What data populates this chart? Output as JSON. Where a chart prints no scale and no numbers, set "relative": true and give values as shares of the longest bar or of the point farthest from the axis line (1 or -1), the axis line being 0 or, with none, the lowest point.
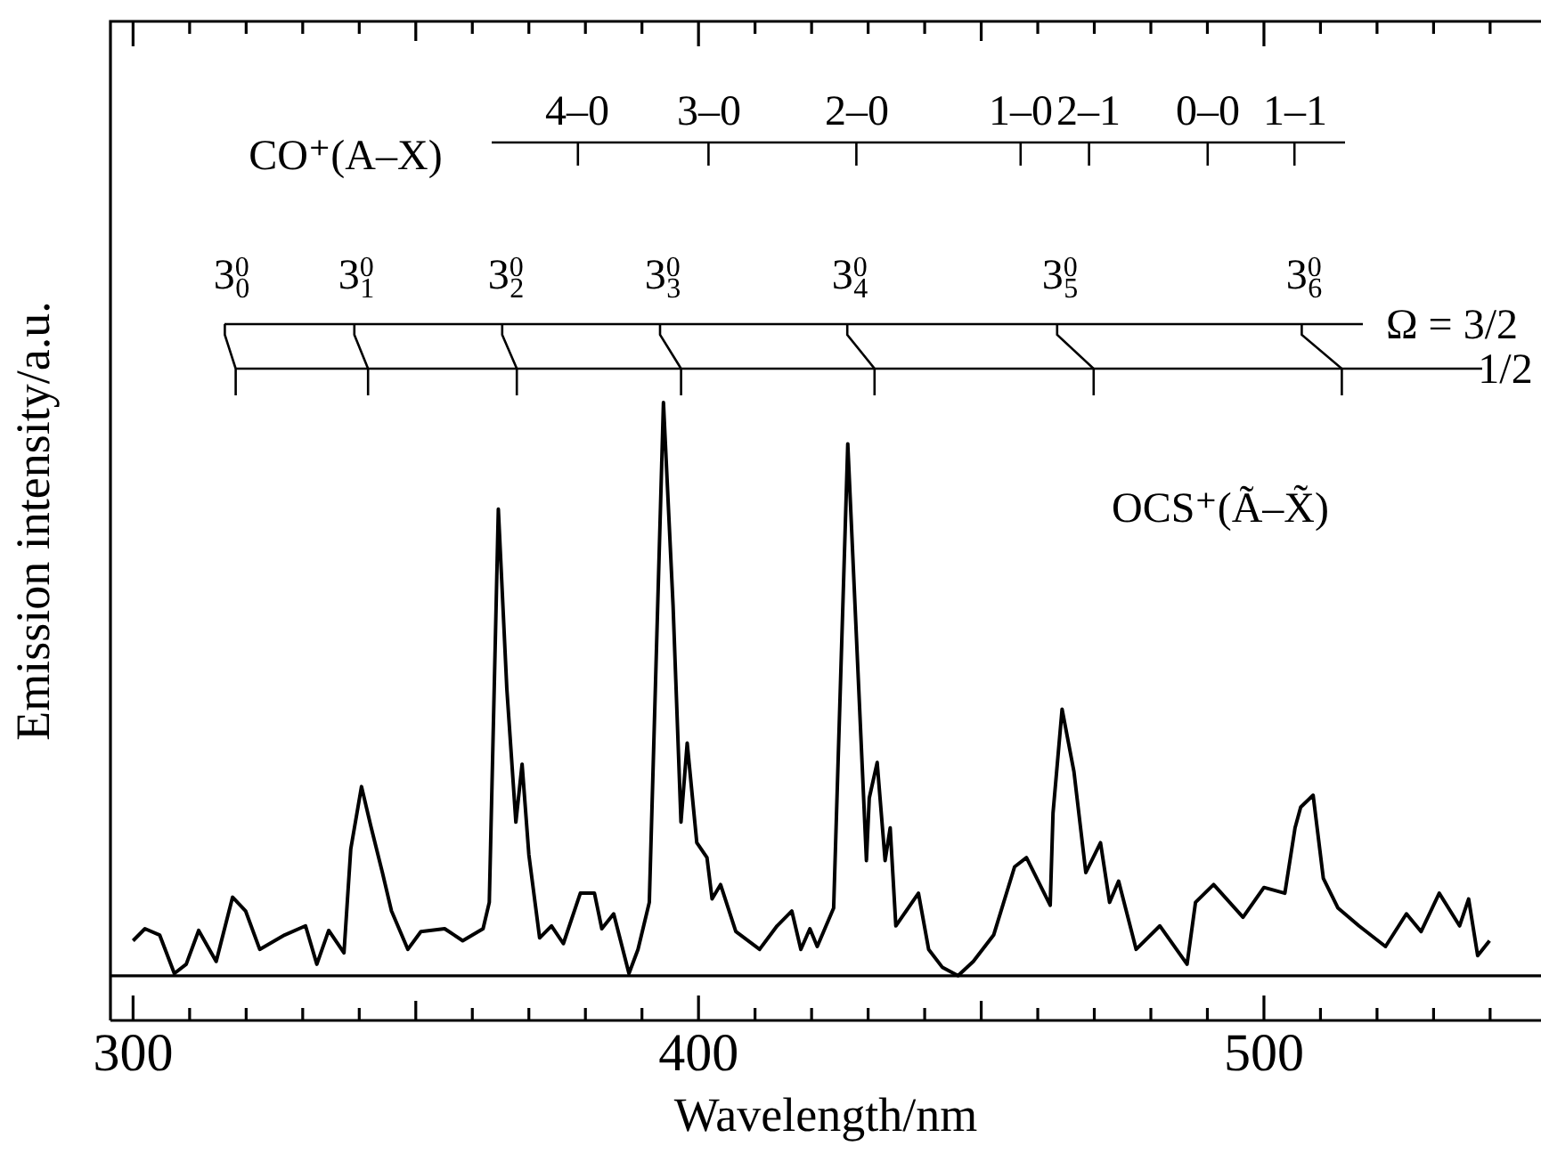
{
  "chart_data": {
    "type": "line",
    "relative": true,
    "marker": "none",
    "xlabel": "Wavelength/nm",
    "ylabel": "Emission intensity/a.u.",
    "xlim": [
      296,
      549
    ],
    "xticks": [
      300,
      400,
      500
    ],
    "annotations": [
      "CO⁺(A–X)",
      "4–0",
      "3–0",
      "2–0",
      "1–0",
      "2–1",
      "0–0",
      "1–1",
      "3$^{0}$$_{0}$",
      "3$^{0}$$_{1}$",
      "3$^{0}$$_{2}$",
      "3$^{0}$$_{3}$",
      "3$^{0}$$_{4}$",
      "3$^{0}$$_{5}$",
      "3$^{0}$$_{6}$",
      "Ω = 3/2",
      "1/2",
      "OCS⁺(Ã–X̃)"
    ],
    "series": [
      {
        "color": "#000000",
        "x": [
          300.0,
          302.1,
          304.7,
          307.3,
          309.4,
          311.6,
          314.7,
          317.6,
          319.9,
          322.4,
          326.8,
          330.5,
          332.5,
          334.6,
          337.3,
          338.5,
          340.4,
          342.0,
          344.1,
          345.7,
          348.6,
          350.9,
          355.1,
          358.3,
          361.9,
          363.0,
          364.6,
          366.1,
          367.7,
          368.8,
          370.0,
          371.9,
          374.0,
          376.1,
          379.1,
          381.6,
          382.9,
          385.0,
          387.7,
          389.3,
          391.3,
          393.8,
          395.5,
          396.9,
          398.0,
          399.7,
          401.5,
          402.4,
          403.9,
          406.6,
          410.8,
          413.9,
          416.5,
          418.1,
          419.7,
          421.0,
          423.9,
          426.4,
          429.7,
          430.2,
          431.6,
          433.0,
          433.9,
          434.9,
          438.9,
          440.7,
          443.1,
          445.9,
          448.6,
          452.2,
          455.9,
          458.0,
          462.2,
          462.7,
          464.3,
          466.4,
          468.5,
          471.1,
          472.7,
          474.3,
          477.4,
          481.6,
          486.4,
          487.9,
          491.1,
          496.3,
          500.0,
          503.7,
          505.5,
          506.5,
          508.7,
          510.5,
          513.1,
          516.8,
          521.5,
          525.2,
          527.8,
          531.0,
          534.6,
          536.2,
          537.8,
          539.9
        ],
        "values": [
          0.061,
          0.082,
          0.071,
          0.004,
          0.02,
          0.079,
          0.025,
          0.137,
          0.113,
          0.046,
          0.071,
          0.087,
          0.02,
          0.079,
          0.04,
          0.221,
          0.33,
          0.263,
          0.18,
          0.113,
          0.046,
          0.077,
          0.082,
          0.061,
          0.082,
          0.128,
          0.814,
          0.501,
          0.268,
          0.369,
          0.211,
          0.066,
          0.087,
          0.056,
          0.144,
          0.144,
          0.082,
          0.108,
          0.004,
          0.046,
          0.128,
          1.0,
          0.646,
          0.268,
          0.406,
          0.232,
          0.206,
          0.134,
          0.159,
          0.077,
          0.046,
          0.087,
          0.113,
          0.046,
          0.082,
          0.051,
          0.118,
          0.928,
          0.201,
          0.31,
          0.372,
          0.201,
          0.258,
          0.087,
          0.144,
          0.046,
          0.015,
          0.0,
          0.025,
          0.071,
          0.19,
          0.206,
          0.123,
          0.284,
          0.465,
          0.356,
          0.18,
          0.232,
          0.128,
          0.165,
          0.046,
          0.087,
          0.02,
          0.128,
          0.159,
          0.102,
          0.154,
          0.144,
          0.258,
          0.294,
          0.315,
          0.17,
          0.118,
          0.087,
          0.051,
          0.108,
          0.077,
          0.144,
          0.087,
          0.134,
          0.035,
          0.061
        ]
      }
    ]
  }
}
